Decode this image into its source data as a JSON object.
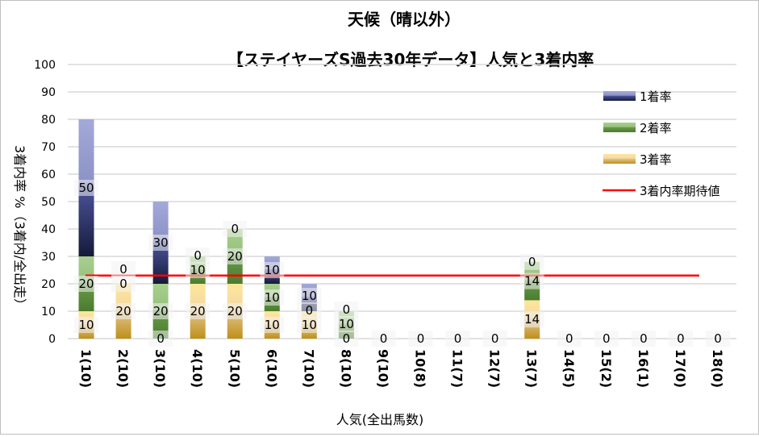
{
  "chart_data": {
    "type": "bar",
    "stacked": true,
    "title": "天候（晴以外）",
    "subtitle": "【ステイヤーズS過去30年データ】人気と3着内率",
    "xlabel": "人気(全出馬数)",
    "ylabel": "3着内率 %（3着内/全出走）",
    "ylim": [
      0,
      100
    ],
    "yticks": [
      0,
      10,
      20,
      30,
      40,
      50,
      60,
      70,
      80,
      90,
      100
    ],
    "grid": true,
    "legend_position": "top-right",
    "categories": [
      "1(10)",
      "2(10)",
      "3(10)",
      "4(10)",
      "5(10)",
      "6(10)",
      "7(10)",
      "8(10)",
      "9(10)",
      "10(8)",
      "11(7)",
      "12(7)",
      "13(7)",
      "14(5)",
      "15(2)",
      "16(1)",
      "17(0)",
      "18(0)"
    ],
    "series": [
      {
        "name": "3着率",
        "color": "#d4a83a",
        "values": [
          10,
          20,
          0,
          20,
          20,
          10,
          10,
          0,
          0,
          0,
          0,
          0,
          14,
          0,
          0,
          0,
          0,
          0
        ]
      },
      {
        "name": "2着率",
        "color": "#70a850",
        "values": [
          20,
          0,
          20,
          10,
          20,
          10,
          0,
          10,
          0,
          0,
          0,
          0,
          14,
          0,
          0,
          0,
          0,
          0
        ]
      },
      {
        "name": "1着率",
        "color": "#3a4590",
        "values": [
          50,
          0,
          30,
          0,
          0,
          10,
          10,
          0,
          0,
          0,
          0,
          0,
          0,
          0,
          0,
          0,
          0,
          0
        ]
      }
    ],
    "line": {
      "name": "3着内率期待値",
      "color": "#ff0000",
      "value": 23
    }
  }
}
